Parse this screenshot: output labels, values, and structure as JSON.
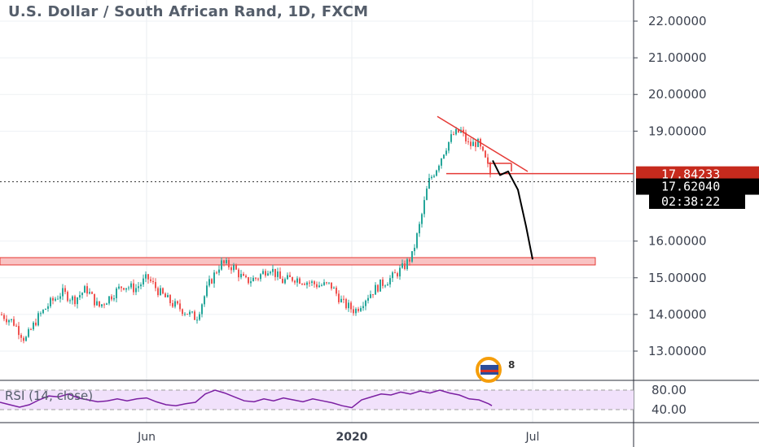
{
  "header": {
    "title": "U.S. Dollar / South African Rand, 1D, FXCM"
  },
  "rsi_panel": {
    "label": "RSI (14, close)",
    "upper": 80,
    "lower": 40,
    "upper_label": "80.00",
    "lower_label": "40.00"
  },
  "price_badges": {
    "last_price": "17.84233",
    "current_price": "17.62040",
    "countdown": "02:38:22"
  },
  "colors": {
    "up": "#26a69a",
    "down": "#ef5350",
    "trend": "#e53935",
    "zone_fill": "#f9c3c3",
    "zone_stroke": "#e53935",
    "rsi_line": "#7b1fa2",
    "rsi_band": "#f1e1fb",
    "last_badge": "#c62a1d",
    "current_badge": "#000000"
  },
  "chart_data": {
    "type": "candlestick",
    "title": "U.S. Dollar / South African Rand, 1D, FXCM",
    "y_axis": {
      "ticks": [
        "22.00000",
        "21.00000",
        "20.00000",
        "19.00000",
        "16.00000",
        "15.00000",
        "14.00000",
        "13.00000"
      ],
      "range": [
        12.2,
        22.3
      ]
    },
    "x_axis": {
      "labels": [
        {
          "text": "Jun",
          "bold": false
        },
        {
          "text": "2020",
          "bold": true
        },
        {
          "text": "Jul",
          "bold": false
        }
      ]
    },
    "price_path": [
      [
        0,
        14.0
      ],
      [
        15,
        13.8
      ],
      [
        30,
        13.3
      ],
      [
        45,
        13.9
      ],
      [
        60,
        14.3
      ],
      [
        75,
        14.6
      ],
      [
        90,
        14.4
      ],
      [
        105,
        14.7
      ],
      [
        120,
        14.2
      ],
      [
        135,
        14.5
      ],
      [
        150,
        14.8
      ],
      [
        165,
        14.7
      ],
      [
        180,
        15.0
      ],
      [
        195,
        14.6
      ],
      [
        210,
        14.3
      ],
      [
        225,
        14.1
      ],
      [
        240,
        13.9
      ],
      [
        255,
        14.8
      ],
      [
        270,
        15.4
      ],
      [
        285,
        15.3
      ],
      [
        300,
        14.9
      ],
      [
        315,
        15.0
      ],
      [
        330,
        15.3
      ],
      [
        345,
        14.9
      ],
      [
        360,
        15.0
      ],
      [
        375,
        14.9
      ],
      [
        390,
        14.8
      ],
      [
        405,
        14.8
      ],
      [
        420,
        14.3
      ],
      [
        435,
        14.1
      ],
      [
        450,
        14.5
      ],
      [
        465,
        14.8
      ],
      [
        480,
        15.0
      ],
      [
        495,
        15.3
      ],
      [
        505,
        15.6
      ],
      [
        515,
        16.5
      ],
      [
        525,
        17.6
      ],
      [
        535,
        18.0
      ],
      [
        545,
        18.5
      ],
      [
        555,
        18.9
      ],
      [
        565,
        19.0
      ],
      [
        575,
        18.6
      ],
      [
        585,
        18.7
      ],
      [
        595,
        18.2
      ],
      [
        603,
        17.7
      ]
    ],
    "annotations": {
      "support_zone": [
        15.35,
        15.55
      ],
      "resistance_line": 17.84,
      "triangle_apex_line": [
        [
          537,
          19.4
        ],
        [
          648,
          17.9
        ]
      ],
      "triangle_base_line": [
        [
          548,
          17.84
        ],
        [
          630,
          18.05
        ]
      ],
      "projection_path": [
        [
          605,
          18.2
        ],
        [
          614,
          17.8
        ],
        [
          624,
          17.9
        ],
        [
          636,
          17.4
        ],
        [
          646,
          16.4
        ],
        [
          654,
          15.5
        ]
      ]
    },
    "rsi_series": [
      [
        0,
        55
      ],
      [
        12,
        50
      ],
      [
        24,
        45
      ],
      [
        36,
        50
      ],
      [
        48,
        60
      ],
      [
        60,
        68
      ],
      [
        72,
        66
      ],
      [
        84,
        72
      ],
      [
        96,
        64
      ],
      [
        108,
        60
      ],
      [
        120,
        56
      ],
      [
        132,
        58
      ],
      [
        144,
        62
      ],
      [
        156,
        58
      ],
      [
        168,
        62
      ],
      [
        180,
        64
      ],
      [
        192,
        56
      ],
      [
        204,
        50
      ],
      [
        216,
        48
      ],
      [
        228,
        52
      ],
      [
        240,
        55
      ],
      [
        252,
        72
      ],
      [
        264,
        80
      ],
      [
        276,
        74
      ],
      [
        288,
        66
      ],
      [
        300,
        58
      ],
      [
        312,
        56
      ],
      [
        324,
        62
      ],
      [
        336,
        58
      ],
      [
        348,
        64
      ],
      [
        360,
        60
      ],
      [
        372,
        56
      ],
      [
        384,
        62
      ],
      [
        396,
        58
      ],
      [
        408,
        54
      ],
      [
        420,
        48
      ],
      [
        432,
        44
      ],
      [
        444,
        60
      ],
      [
        456,
        66
      ],
      [
        468,
        72
      ],
      [
        480,
        70
      ],
      [
        492,
        76
      ],
      [
        504,
        72
      ],
      [
        516,
        78
      ],
      [
        528,
        74
      ],
      [
        540,
        80
      ],
      [
        552,
        74
      ],
      [
        564,
        70
      ],
      [
        576,
        62
      ],
      [
        588,
        60
      ],
      [
        600,
        52
      ],
      [
        604,
        48
      ]
    ]
  }
}
